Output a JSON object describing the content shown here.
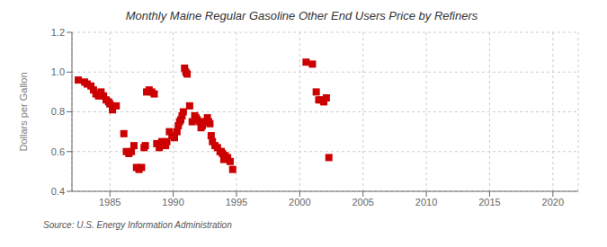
{
  "chart_data": {
    "type": "scatter",
    "title": "Monthly Maine Regular Gasoline Other End Users Price by Refiners",
    "ylabel": "Dollars per Gallon",
    "source": "Source: U.S. Energy Information Administration",
    "color": "#cc0000",
    "marker": "square",
    "grid": true,
    "xlim": [
      1982,
      2022
    ],
    "ylim": [
      0.4,
      1.2
    ],
    "xticks": [
      1985,
      1990,
      1995,
      2000,
      2005,
      2010,
      2015,
      2020
    ],
    "yticks": [
      0.4,
      0.6,
      0.8,
      {
        "value": 1.0,
        "label": "1.0"
      },
      1.2
    ],
    "x": [
      1982.5,
      1983.0,
      1983.2,
      1983.5,
      1983.7,
      1983.9,
      1984.1,
      1984.3,
      1984.5,
      1984.7,
      1984.9,
      1985.0,
      1985.2,
      1985.5,
      1986.1,
      1986.3,
      1986.5,
      1986.7,
      1986.9,
      1987.1,
      1987.3,
      1987.5,
      1987.7,
      1987.8,
      1987.9,
      1988.1,
      1988.3,
      1988.5,
      1988.7,
      1988.9,
      1989.1,
      1989.3,
      1989.4,
      1989.5,
      1989.7,
      1989.9,
      1990.1,
      1990.3,
      1990.4,
      1990.5,
      1990.6,
      1990.7,
      1990.8,
      1990.9,
      1991.0,
      1991.1,
      1991.3,
      1991.5,
      1991.7,
      1991.8,
      1991.9,
      1992.1,
      1992.2,
      1992.3,
      1992.5,
      1992.7,
      1992.8,
      1992.9,
      1993.0,
      1993.1,
      1993.3,
      1993.5,
      1993.7,
      1993.8,
      1993.9,
      1994.0,
      1994.1,
      1994.3,
      1994.5,
      1994.7,
      2000.5,
      2001.0,
      2001.3,
      2001.5,
      2001.7,
      2001.9,
      2002.1,
      2002.3
    ],
    "values": [
      0.96,
      0.95,
      0.94,
      0.93,
      0.91,
      0.89,
      0.88,
      0.9,
      0.88,
      0.86,
      0.85,
      0.84,
      0.81,
      0.83,
      0.69,
      0.6,
      0.59,
      0.6,
      0.63,
      0.52,
      0.51,
      0.52,
      0.62,
      0.63,
      0.9,
      0.91,
      0.9,
      0.89,
      0.64,
      0.62,
      0.65,
      0.64,
      0.63,
      0.65,
      0.7,
      0.68,
      0.67,
      0.7,
      0.73,
      0.75,
      0.76,
      0.78,
      0.8,
      1.02,
      1.0,
      0.99,
      0.83,
      0.75,
      0.78,
      0.77,
      0.76,
      0.75,
      0.72,
      0.73,
      0.75,
      0.77,
      0.75,
      0.74,
      0.68,
      0.65,
      0.63,
      0.62,
      0.6,
      0.6,
      0.59,
      0.56,
      0.58,
      0.57,
      0.55,
      0.51,
      1.05,
      1.04,
      0.9,
      0.86,
      0.86,
      0.85,
      0.87,
      0.57
    ]
  }
}
